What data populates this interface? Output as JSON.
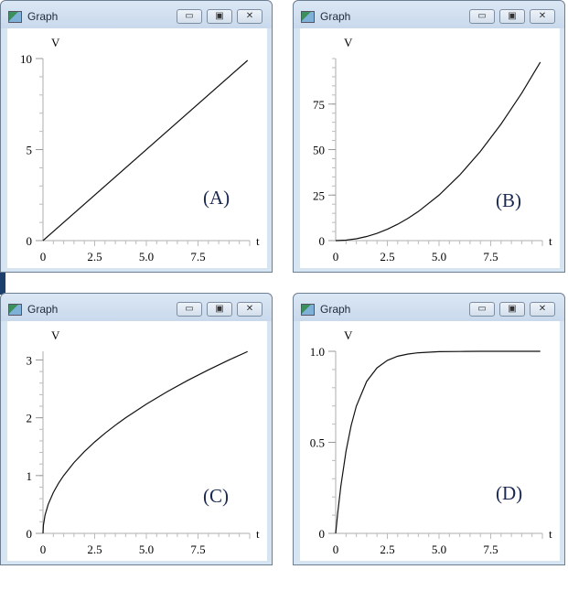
{
  "windows": [
    {
      "title": "Graph",
      "label": "(A)",
      "xlabel": "t",
      "ylabel": "V",
      "chart_data": {
        "type": "line",
        "xlim": [
          0,
          10
        ],
        "ylim": [
          0,
          10
        ],
        "xticks": [
          "0",
          "2.5",
          "5.0",
          "7.5"
        ],
        "yticks": [
          "0",
          "5",
          "10"
        ],
        "ytick_values": [
          0,
          5,
          10
        ],
        "yminor": 1,
        "x": [
          0,
          9.9
        ],
        "y": [
          0,
          9.9
        ]
      }
    },
    {
      "title": "Graph",
      "label": "(B)",
      "xlabel": "t",
      "ylabel": "V",
      "chart_data": {
        "type": "line",
        "xlim": [
          0,
          10
        ],
        "ylim": [
          0,
          100
        ],
        "xticks": [
          "0",
          "2.5",
          "5.0",
          "7.5"
        ],
        "yticks": [
          "0",
          "25",
          "50",
          "75"
        ],
        "ytick_values": [
          0,
          25,
          50,
          75
        ],
        "yminor": 5,
        "x": [
          0,
          0.5,
          1,
          1.5,
          2,
          2.5,
          3,
          3.5,
          4,
          5,
          6,
          7,
          8,
          9,
          9.9
        ],
        "y": [
          0,
          0.25,
          1,
          2.25,
          4,
          6.25,
          9,
          12.25,
          16,
          25,
          36,
          49,
          64,
          81,
          98
        ]
      }
    },
    {
      "title": "Graph",
      "label": "(C)",
      "xlabel": "t",
      "ylabel": "V",
      "chart_data": {
        "type": "line",
        "xlim": [
          0,
          10
        ],
        "ylim": [
          0,
          3.15
        ],
        "xticks": [
          "0",
          "2.5",
          "5.0",
          "7.5"
        ],
        "yticks": [
          "0",
          "1",
          "2",
          "3"
        ],
        "ytick_values": [
          0,
          1,
          2,
          3
        ],
        "yminor": 0.2,
        "x": [
          0,
          0.02,
          0.1,
          0.25,
          0.5,
          0.75,
          1,
          1.5,
          2,
          2.5,
          3,
          3.5,
          4,
          5,
          6,
          7,
          8,
          9,
          9.9
        ],
        "y": [
          0,
          0.141,
          0.316,
          0.5,
          0.707,
          0.866,
          1,
          1.225,
          1.414,
          1.581,
          1.732,
          1.871,
          2,
          2.236,
          2.449,
          2.646,
          2.828,
          3,
          3.146
        ]
      }
    },
    {
      "title": "Graph",
      "label": "(D)",
      "xlabel": "t",
      "ylabel": "V",
      "chart_data": {
        "type": "line",
        "xlim": [
          0,
          10
        ],
        "ylim": [
          0,
          1.0
        ],
        "xticks": [
          "0",
          "2.5",
          "5.0",
          "7.5"
        ],
        "yticks": [
          "0",
          "0.5",
          "1.0"
        ],
        "ytick_values": [
          0,
          0.5,
          1.0
        ],
        "yminor": 0.1,
        "x": [
          0,
          0.1,
          0.25,
          0.5,
          0.75,
          1,
          1.5,
          2,
          2.5,
          3,
          3.5,
          4,
          5,
          6,
          7,
          8,
          9,
          9.9
        ],
        "y": [
          0,
          0.113,
          0.259,
          0.451,
          0.593,
          0.699,
          0.835,
          0.909,
          0.95,
          0.973,
          0.985,
          0.992,
          0.998,
          0.999,
          1,
          1,
          1,
          1
        ]
      }
    }
  ],
  "buttons": {
    "minimize": "▭",
    "maximize": "▣",
    "close": "✕"
  }
}
